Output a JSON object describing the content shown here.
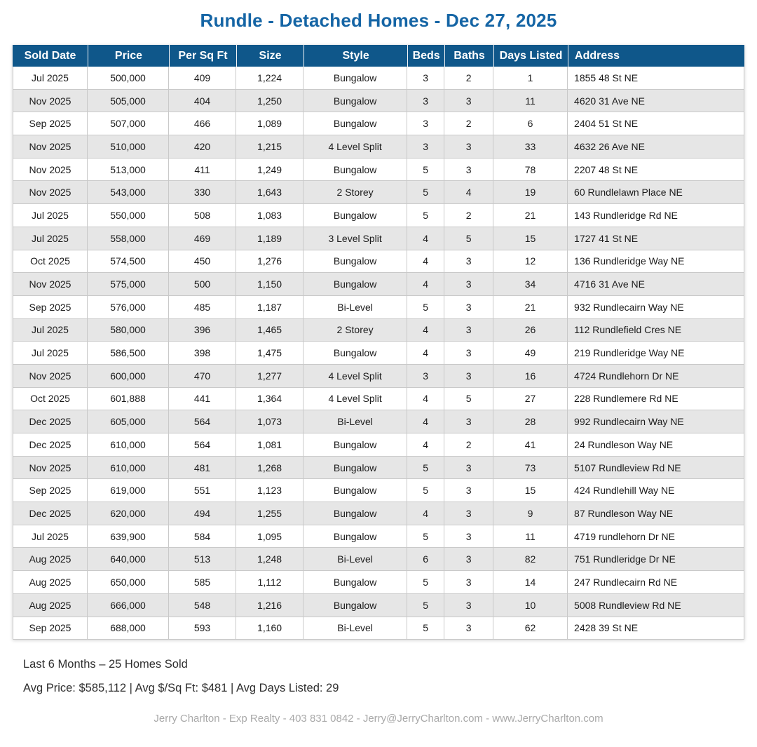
{
  "title": "Rundle - Detached Homes - Dec 27, 2025",
  "colors": {
    "title_text": "#1565a5",
    "header_bg": "#0f578a",
    "header_text": "#ffffff",
    "row_alt_bg": "#e6e6e6",
    "cell_border": "#c9c9c9",
    "attribution_text": "#a9a9a9"
  },
  "chart_data": {
    "type": "table",
    "title": "Rundle - Detached Homes - Dec 27, 2025",
    "columns": [
      "Sold Date",
      "Price",
      "Per Sq Ft",
      "Size",
      "Style",
      "Beds",
      "Baths",
      "Days Listed",
      "Address"
    ],
    "column_widths_pct": [
      10.25,
      11.11,
      9.2,
      9.2,
      14.18,
      5.08,
      6.7,
      10.15,
      24.13
    ],
    "rows": [
      [
        "Jul 2025",
        "500,000",
        "409",
        "1,224",
        "Bungalow",
        "3",
        "2",
        "1",
        "1855 48 St NE"
      ],
      [
        "Nov 2025",
        "505,000",
        "404",
        "1,250",
        "Bungalow",
        "3",
        "3",
        "11",
        "4620 31 Ave NE"
      ],
      [
        "Sep 2025",
        "507,000",
        "466",
        "1,089",
        "Bungalow",
        "3",
        "2",
        "6",
        "2404 51 St NE"
      ],
      [
        "Nov 2025",
        "510,000",
        "420",
        "1,215",
        "4 Level Split",
        "3",
        "3",
        "33",
        "4632 26 Ave NE"
      ],
      [
        "Nov 2025",
        "513,000",
        "411",
        "1,249",
        "Bungalow",
        "5",
        "3",
        "78",
        "2207 48 St NE"
      ],
      [
        "Nov 2025",
        "543,000",
        "330",
        "1,643",
        "2 Storey",
        "5",
        "4",
        "19",
        "60 Rundlelawn Place NE"
      ],
      [
        "Jul 2025",
        "550,000",
        "508",
        "1,083",
        "Bungalow",
        "5",
        "2",
        "21",
        "143 Rundleridge Rd NE"
      ],
      [
        "Jul 2025",
        "558,000",
        "469",
        "1,189",
        "3 Level Split",
        "4",
        "5",
        "15",
        "1727 41 St NE"
      ],
      [
        "Oct 2025",
        "574,500",
        "450",
        "1,276",
        "Bungalow",
        "4",
        "3",
        "12",
        "136 Rundleridge Way NE"
      ],
      [
        "Nov 2025",
        "575,000",
        "500",
        "1,150",
        "Bungalow",
        "4",
        "3",
        "34",
        "4716 31 Ave NE"
      ],
      [
        "Sep 2025",
        "576,000",
        "485",
        "1,187",
        "Bi-Level",
        "5",
        "3",
        "21",
        "932 Rundlecairn Way NE"
      ],
      [
        "Jul 2025",
        "580,000",
        "396",
        "1,465",
        "2 Storey",
        "4",
        "3",
        "26",
        "112 Rundlefield Cres NE"
      ],
      [
        "Jul 2025",
        "586,500",
        "398",
        "1,475",
        "Bungalow",
        "4",
        "3",
        "49",
        "219 Rundleridge Way NE"
      ],
      [
        "Nov 2025",
        "600,000",
        "470",
        "1,277",
        "4 Level Split",
        "3",
        "3",
        "16",
        "4724 Rundlehorn Dr NE"
      ],
      [
        "Oct 2025",
        "601,888",
        "441",
        "1,364",
        "4 Level Split",
        "4",
        "5",
        "27",
        "228 Rundlemere Rd NE"
      ],
      [
        "Dec 2025",
        "605,000",
        "564",
        "1,073",
        "Bi-Level",
        "4",
        "3",
        "28",
        "992 Rundlecairn Way NE"
      ],
      [
        "Dec 2025",
        "610,000",
        "564",
        "1,081",
        "Bungalow",
        "4",
        "2",
        "41",
        "24 Rundleson Way NE"
      ],
      [
        "Nov 2025",
        "610,000",
        "481",
        "1,268",
        "Bungalow",
        "5",
        "3",
        "73",
        "5107 Rundleview Rd NE"
      ],
      [
        "Sep 2025",
        "619,000",
        "551",
        "1,123",
        "Bungalow",
        "5",
        "3",
        "15",
        "424 Rundlehill Way NE"
      ],
      [
        "Dec 2025",
        "620,000",
        "494",
        "1,255",
        "Bungalow",
        "4",
        "3",
        "9",
        "87 Rundleson Way NE"
      ],
      [
        "Jul 2025",
        "639,900",
        "584",
        "1,095",
        "Bungalow",
        "5",
        "3",
        "11",
        "4719 rundlehorn Dr NE"
      ],
      [
        "Aug 2025",
        "640,000",
        "513",
        "1,248",
        "Bi-Level",
        "6",
        "3",
        "82",
        "751 Rundleridge Dr NE"
      ],
      [
        "Aug 2025",
        "650,000",
        "585",
        "1,112",
        "Bungalow",
        "5",
        "3",
        "14",
        "247 Rundlecairn Rd NE"
      ],
      [
        "Aug 2025",
        "666,000",
        "548",
        "1,216",
        "Bungalow",
        "5",
        "3",
        "10",
        "5008 Rundleview Rd NE"
      ],
      [
        "Sep 2025",
        "688,000",
        "593",
        "1,160",
        "Bi-Level",
        "5",
        "3",
        "62",
        "2428 39 St NE"
      ]
    ]
  },
  "summary": {
    "line1": "Last 6 Months – 25 Homes Sold",
    "line2": "Avg Price: $585,112 | Avg $/Sq Ft: $481 | Avg Days Listed: 29"
  },
  "footer": {
    "attribution": "Jerry Charlton - Exp Realty - 403 831 0842 - Jerry@JerryCharlton.com - www.JerryCharlton.com"
  }
}
